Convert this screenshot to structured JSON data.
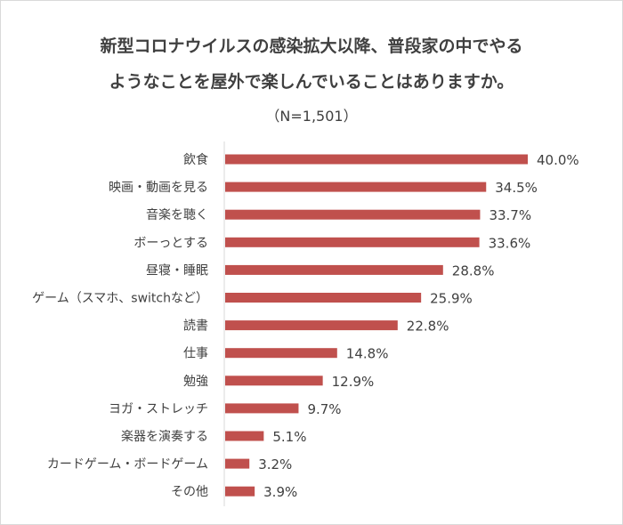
{
  "chart_data": {
    "type": "bar",
    "orientation": "horizontal",
    "title_lines": [
      "新型コロナウイルスの感染拡大以降、普段家の中でやる",
      "ようなことを屋外で楽しんでいることはありますか。"
    ],
    "subtitle": "（N=1,501）",
    "categories": [
      "飲食",
      "映画・動画を見る",
      "音楽を聴く",
      "ボーっとする",
      "昼寝・睡眠",
      "ゲーム（スマホ、switchなど）",
      "読書",
      "仕事",
      "勉強",
      "ヨガ・ストレッチ",
      "楽器を演奏する",
      "カードゲーム・ボードゲーム",
      "その他"
    ],
    "values": [
      40.0,
      34.5,
      33.7,
      33.6,
      28.8,
      25.9,
      22.8,
      14.8,
      12.9,
      9.7,
      5.1,
      3.2,
      3.9
    ],
    "data_labels": [
      "40.0%",
      "34.5%",
      "33.7%",
      "33.6%",
      "28.8%",
      "25.9%",
      "22.8%",
      "14.8%",
      "12.9%",
      "9.7%",
      "5.1%",
      "3.2%",
      "3.9%"
    ],
    "xlim": [
      0,
      40
    ],
    "grid": false,
    "legend": "none",
    "bar_color": "#c0504d"
  }
}
